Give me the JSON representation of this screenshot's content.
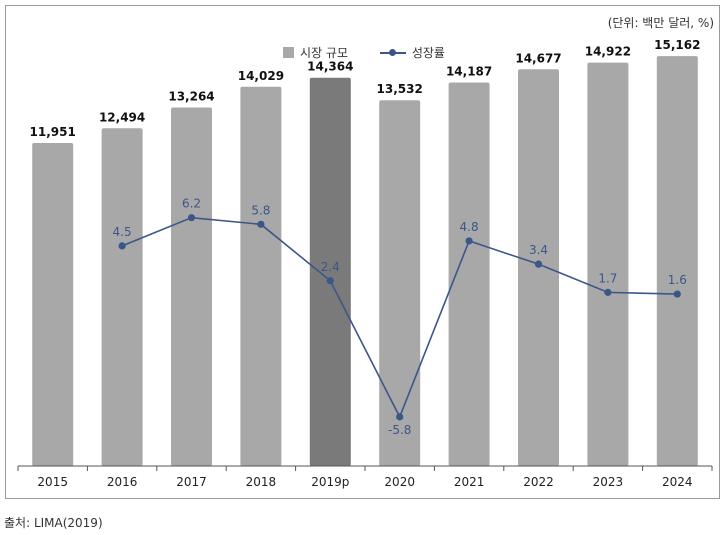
{
  "unit_note": "(단위: 백만 달러, %)",
  "source": "출처: LIMA(2019)",
  "colors": {
    "bar": "#a8a8a8",
    "bar_highlight": "#7a7a7a",
    "line": "#3d5689"
  },
  "chart_data": {
    "type": "bar",
    "categories": [
      "2015",
      "2016",
      "2017",
      "2018",
      "2019p",
      "2020",
      "2021",
      "2022",
      "2023",
      "2024"
    ],
    "highlight_category": "2019p",
    "series": [
      {
        "name": "시장 규모",
        "type": "bar",
        "values": [
          11951,
          12494,
          13264,
          14029,
          14364,
          13532,
          14187,
          14677,
          14922,
          15162
        ],
        "labels": [
          "11,951",
          "12,494",
          "13,264",
          "14,029",
          "14,364",
          "13,532",
          "14,187",
          "14,677",
          "14,922",
          "15,162"
        ]
      },
      {
        "name": "성장률",
        "type": "line",
        "values": [
          null,
          4.5,
          6.2,
          5.8,
          2.4,
          -5.8,
          4.8,
          3.4,
          1.7,
          1.6
        ],
        "labels": [
          "",
          "4.5",
          "6.2",
          "5.8",
          "2.4",
          "-5.8",
          "4.8",
          "3.4",
          "1.7",
          "1.6"
        ]
      }
    ],
    "bar_axis_range": [
      0,
      16500
    ],
    "line_axis_range": [
      -9,
      11
    ],
    "legend_position": "top-center",
    "grid": false
  }
}
